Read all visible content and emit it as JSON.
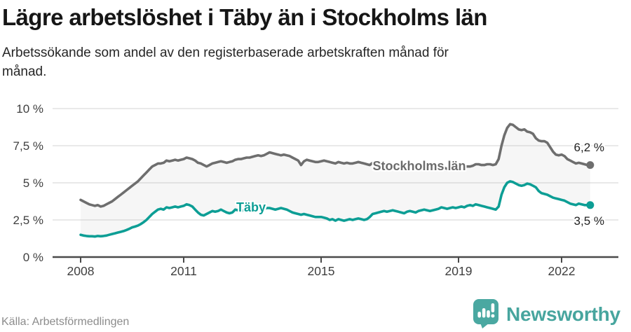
{
  "header": {
    "title": "Lägre arbetslöshet i Täby än i Stockholms län",
    "subtitle_line1": "Arbetssökande som andel av den registerbaserade arbetskraften månad för",
    "subtitle_line2": "månad."
  },
  "footer": {
    "source": "Källa: Arbetsförmedlingen",
    "brand": "Newsworthy"
  },
  "colors": {
    "stockholm_line": "#6e6e6e",
    "taby_line": "#0d9e95",
    "brand_teal": "#4aa8a1",
    "grid": "#e2e2e2",
    "axis": "#4a4a4a",
    "band_fill": "rgba(130,130,130,0.07)",
    "tick_text": "#3f3f3f"
  },
  "chart_data": {
    "type": "line",
    "frequency": "monthly",
    "x_start": "2008-01",
    "x_end": "2022-11",
    "ylim": [
      0,
      10
    ],
    "grid": true,
    "y_ticks": [
      10,
      7.5,
      5,
      2.5,
      0
    ],
    "y_tick_labels": [
      "10 %",
      "7,5 %",
      "5 %",
      "2,5 %",
      "0 %"
    ],
    "x_tick_years": [
      2008,
      2011,
      2015,
      2019,
      2022
    ],
    "x_tick_labels": [
      "2008",
      "2011",
      "2015",
      "2019",
      "2022"
    ],
    "series": [
      {
        "name": "Stockholms län",
        "color": "#6e6e6e",
        "end_label": "6,2 %",
        "end_value": 6.2,
        "values": [
          3.85,
          3.75,
          3.65,
          3.55,
          3.5,
          3.45,
          3.5,
          3.4,
          3.45,
          3.55,
          3.65,
          3.75,
          3.9,
          4.05,
          4.2,
          4.35,
          4.5,
          4.65,
          4.8,
          4.95,
          5.1,
          5.3,
          5.5,
          5.7,
          5.9,
          6.1,
          6.2,
          6.3,
          6.3,
          6.35,
          6.5,
          6.45,
          6.5,
          6.55,
          6.5,
          6.55,
          6.6,
          6.7,
          6.65,
          6.6,
          6.5,
          6.35,
          6.3,
          6.2,
          6.1,
          6.2,
          6.3,
          6.35,
          6.4,
          6.45,
          6.4,
          6.35,
          6.4,
          6.45,
          6.55,
          6.6,
          6.6,
          6.65,
          6.7,
          6.7,
          6.75,
          6.8,
          6.85,
          6.8,
          6.85,
          6.95,
          7.05,
          7.0,
          6.95,
          6.9,
          6.85,
          6.9,
          6.85,
          6.8,
          6.7,
          6.6,
          6.5,
          6.2,
          6.45,
          6.55,
          6.5,
          6.45,
          6.4,
          6.4,
          6.45,
          6.5,
          6.45,
          6.4,
          6.35,
          6.3,
          6.4,
          6.35,
          6.3,
          6.35,
          6.3,
          6.3,
          6.35,
          6.4,
          6.35,
          6.3,
          6.25,
          6.2,
          6.35,
          6.3,
          6.25,
          6.3,
          6.35,
          6.3,
          6.25,
          6.2,
          6.15,
          6.1,
          6.05,
          6.0,
          6.1,
          6.05,
          6.0,
          6.05,
          6.1,
          6.1,
          6.1,
          6.05,
          6.0,
          5.95,
          5.9,
          5.95,
          6.05,
          6.0,
          5.95,
          6.0,
          6.05,
          6.05,
          6.1,
          6.1,
          6.1,
          6.1,
          6.1,
          6.15,
          6.25,
          6.25,
          6.2,
          6.2,
          6.25,
          6.25,
          6.2,
          6.25,
          6.6,
          7.5,
          8.2,
          8.7,
          8.95,
          8.9,
          8.75,
          8.6,
          8.55,
          8.6,
          8.45,
          8.4,
          8.3,
          8.0,
          7.85,
          7.8,
          7.8,
          7.7,
          7.4,
          7.1,
          6.9,
          6.85,
          6.9,
          6.8,
          6.6,
          6.5,
          6.4,
          6.3,
          6.35,
          6.3,
          6.25,
          6.2,
          6.2
        ]
      },
      {
        "name": "Täby",
        "color": "#0d9e95",
        "end_label": "3,5 %",
        "end_value": 3.5,
        "values": [
          1.5,
          1.45,
          1.42,
          1.4,
          1.4,
          1.38,
          1.42,
          1.4,
          1.42,
          1.45,
          1.5,
          1.55,
          1.6,
          1.65,
          1.7,
          1.75,
          1.82,
          1.9,
          2.0,
          2.05,
          2.12,
          2.22,
          2.35,
          2.5,
          2.7,
          2.9,
          3.05,
          3.2,
          3.25,
          3.2,
          3.35,
          3.3,
          3.35,
          3.4,
          3.35,
          3.4,
          3.45,
          3.55,
          3.5,
          3.4,
          3.2,
          3.0,
          2.85,
          2.8,
          2.9,
          3.0,
          3.1,
          3.05,
          3.1,
          3.2,
          3.1,
          3.0,
          2.95,
          3.0,
          3.2,
          3.15,
          3.1,
          3.15,
          3.2,
          3.2,
          3.25,
          3.3,
          3.25,
          3.2,
          3.25,
          3.3,
          3.3,
          3.25,
          3.2,
          3.25,
          3.3,
          3.25,
          3.2,
          3.1,
          3.0,
          2.95,
          2.9,
          2.85,
          2.9,
          2.85,
          2.8,
          2.75,
          2.7,
          2.7,
          2.7,
          2.65,
          2.6,
          2.5,
          2.55,
          2.45,
          2.55,
          2.5,
          2.45,
          2.5,
          2.55,
          2.5,
          2.55,
          2.6,
          2.55,
          2.5,
          2.55,
          2.7,
          2.9,
          2.95,
          3.0,
          3.05,
          3.1,
          3.05,
          3.1,
          3.15,
          3.1,
          3.05,
          3.0,
          2.95,
          3.05,
          3.1,
          3.05,
          3.0,
          3.1,
          3.15,
          3.2,
          3.15,
          3.1,
          3.15,
          3.2,
          3.25,
          3.35,
          3.3,
          3.25,
          3.3,
          3.35,
          3.3,
          3.35,
          3.4,
          3.35,
          3.45,
          3.5,
          3.45,
          3.55,
          3.5,
          3.45,
          3.4,
          3.35,
          3.3,
          3.25,
          3.2,
          3.4,
          4.2,
          4.7,
          5.0,
          5.1,
          5.05,
          4.95,
          4.85,
          4.8,
          4.85,
          4.95,
          4.9,
          4.8,
          4.7,
          4.45,
          4.3,
          4.25,
          4.2,
          4.1,
          4.0,
          3.95,
          3.9,
          3.85,
          3.8,
          3.7,
          3.6,
          3.55,
          3.5,
          3.6,
          3.55,
          3.5,
          3.5,
          3.5
        ]
      }
    ]
  }
}
